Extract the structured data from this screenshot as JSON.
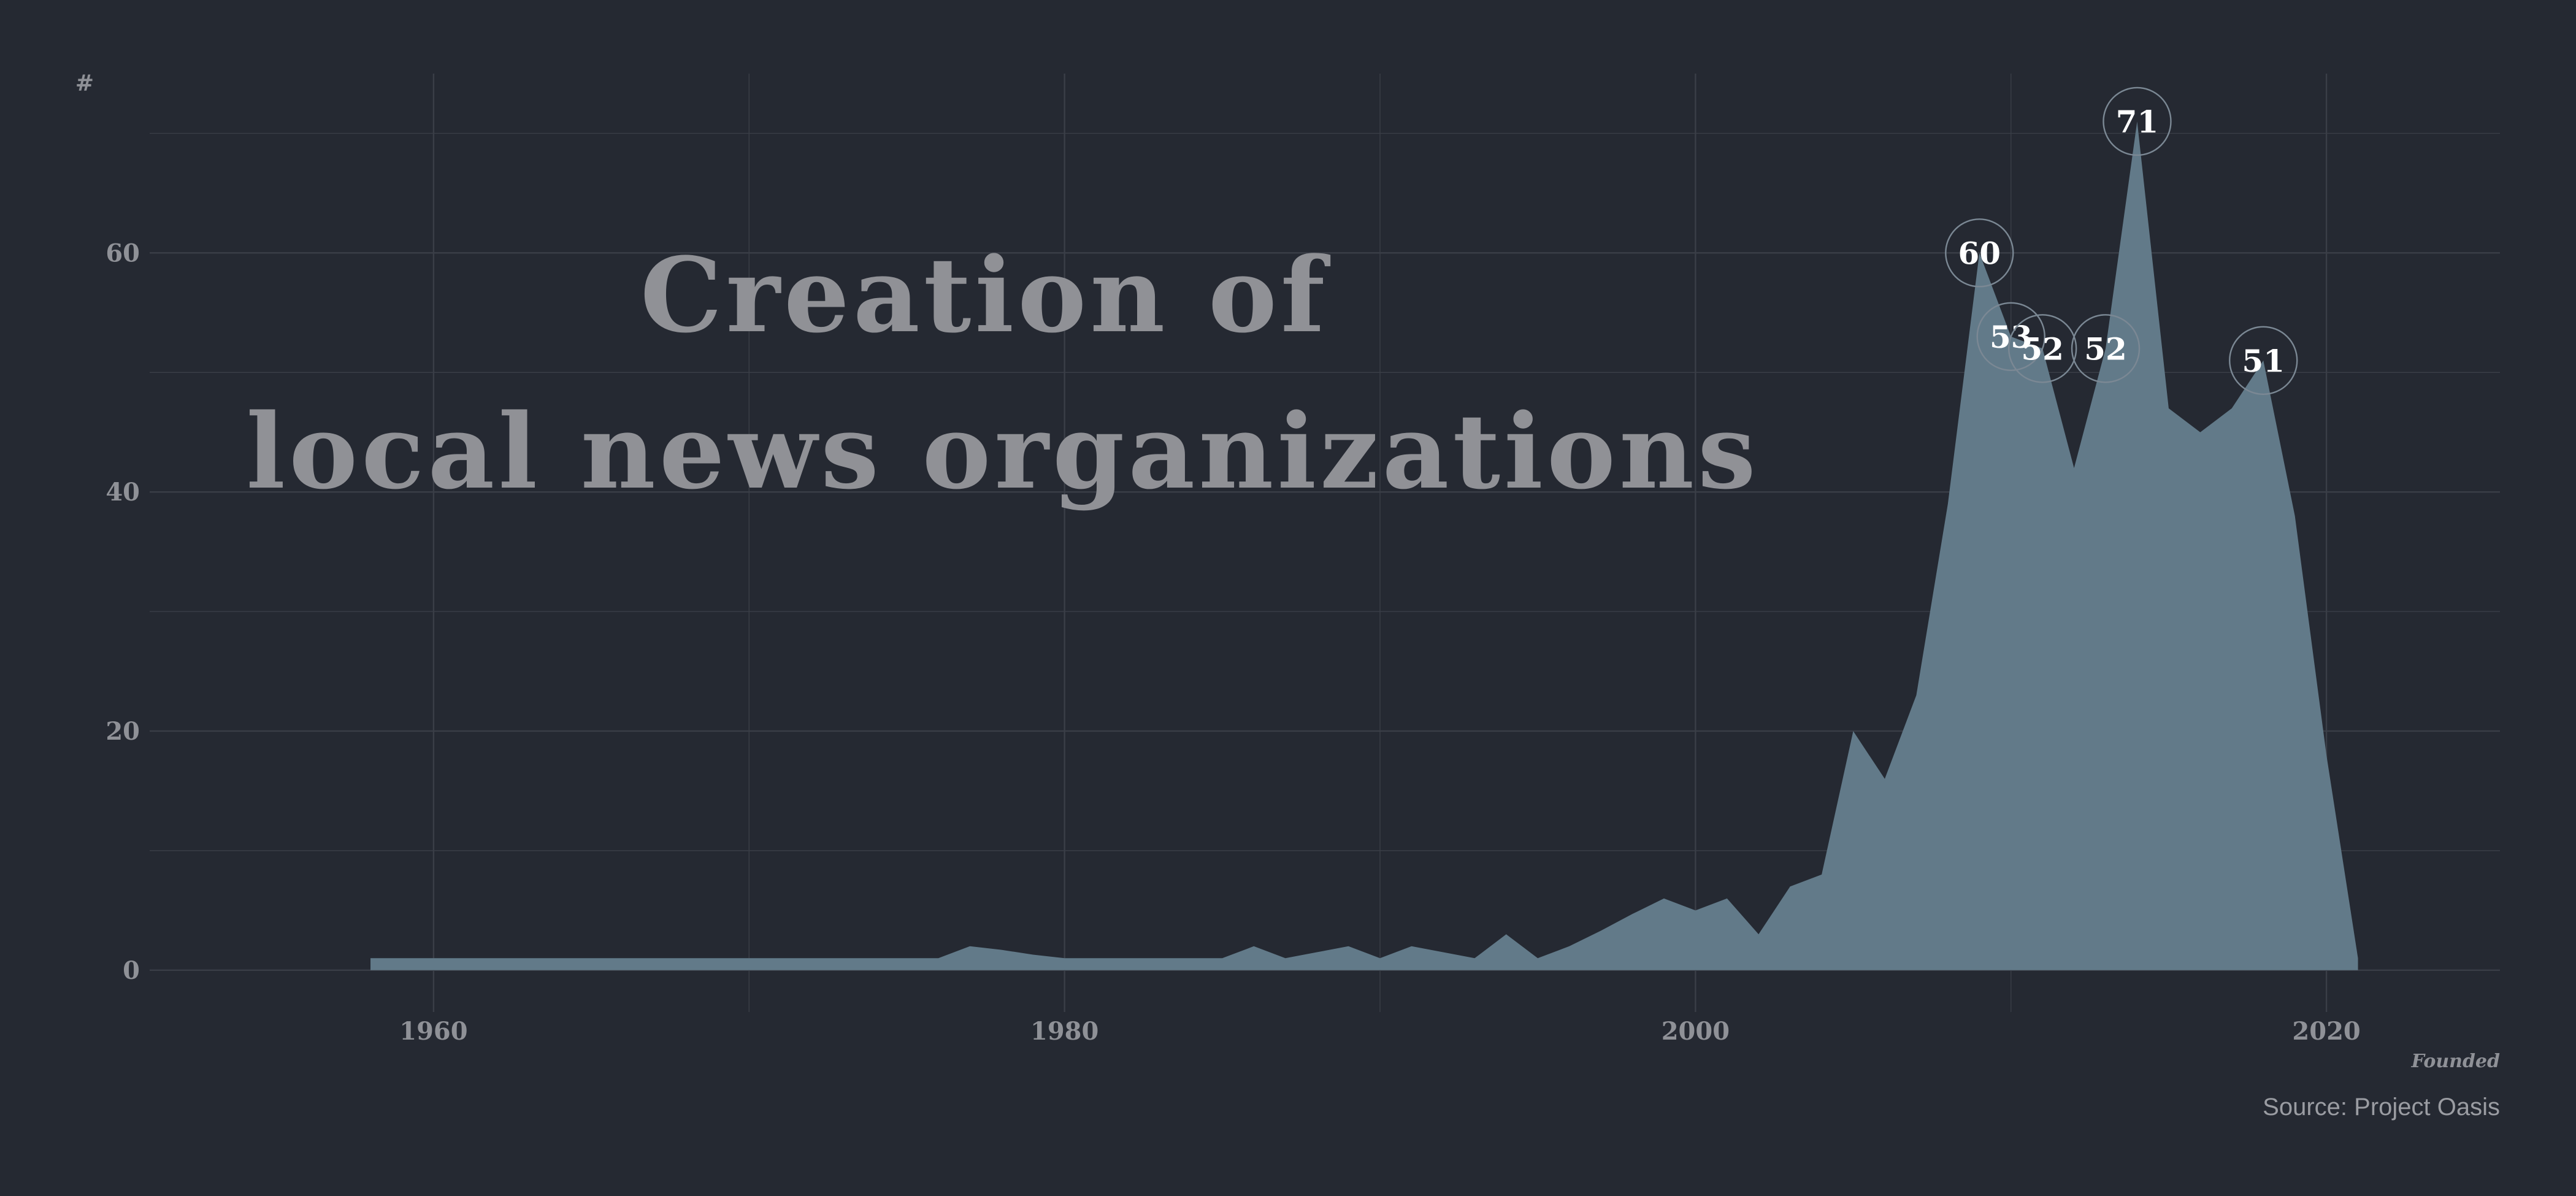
{
  "chart_data": {
    "type": "area",
    "title_lines": [
      "Creation of",
      "local news organizations"
    ],
    "xlabel": "Founded",
    "ylabel": "#",
    "source": "Source: Project Oasis",
    "xlim": [
      1951,
      2025.5
    ],
    "ylim": [
      -3.5,
      75
    ],
    "x_ticks": [
      1960,
      1980,
      2000,
      2020
    ],
    "y_ticks": [
      0,
      20,
      40,
      60
    ],
    "grid": true,
    "colors": {
      "background": "#252932",
      "area": "#627a89",
      "grid": "#3a3e47",
      "text": "#8f9197",
      "label_text": "#ffffff",
      "label_ring": "#7b8894"
    },
    "series": [
      {
        "x": [
          1958,
          1959,
          1960,
          1961,
          1962,
          1963,
          1964,
          1965,
          1966,
          1967,
          1968,
          1969,
          1970,
          1971,
          1972,
          1973,
          1974,
          1975,
          1976,
          1977,
          1978,
          1979,
          1980,
          1981,
          1982,
          1983,
          1984,
          1985,
          1986,
          1987,
          1988,
          1989,
          1990,
          1991,
          1992,
          1993,
          1994,
          1995,
          1996,
          1997,
          1998,
          1999,
          2000,
          2001,
          2002,
          2003,
          2004,
          2005,
          2006,
          2007,
          2008,
          2009,
          2010,
          2011,
          2012,
          2013,
          2014,
          2015,
          2016,
          2017,
          2018,
          2019,
          2020,
          2021
        ],
        "y": [
          1,
          1,
          1,
          1,
          1,
          1,
          1,
          1,
          1,
          1,
          1,
          1,
          1,
          1,
          1,
          1,
          1,
          1,
          1,
          2,
          1.7,
          1.3,
          1,
          1,
          1,
          1,
          1,
          1,
          2,
          1,
          1.5,
          2,
          1,
          2,
          1.5,
          1,
          3,
          1,
          2,
          3.3,
          4.7,
          6,
          5,
          6,
          3,
          7,
          8,
          20,
          16,
          23,
          39,
          60,
          53,
          52,
          42,
          52,
          71,
          47,
          45,
          47,
          51,
          38,
          18,
          1
        ]
      }
    ],
    "annotations": [
      {
        "x": 2009,
        "y": 60,
        "label": "60"
      },
      {
        "x": 2010,
        "y": 53,
        "label": "53"
      },
      {
        "x": 2011,
        "y": 52,
        "label": "52"
      },
      {
        "x": 2013,
        "y": 52,
        "label": "52"
      },
      {
        "x": 2014,
        "y": 71,
        "label": "71"
      },
      {
        "x": 2018,
        "y": 51,
        "label": "51"
      }
    ]
  }
}
